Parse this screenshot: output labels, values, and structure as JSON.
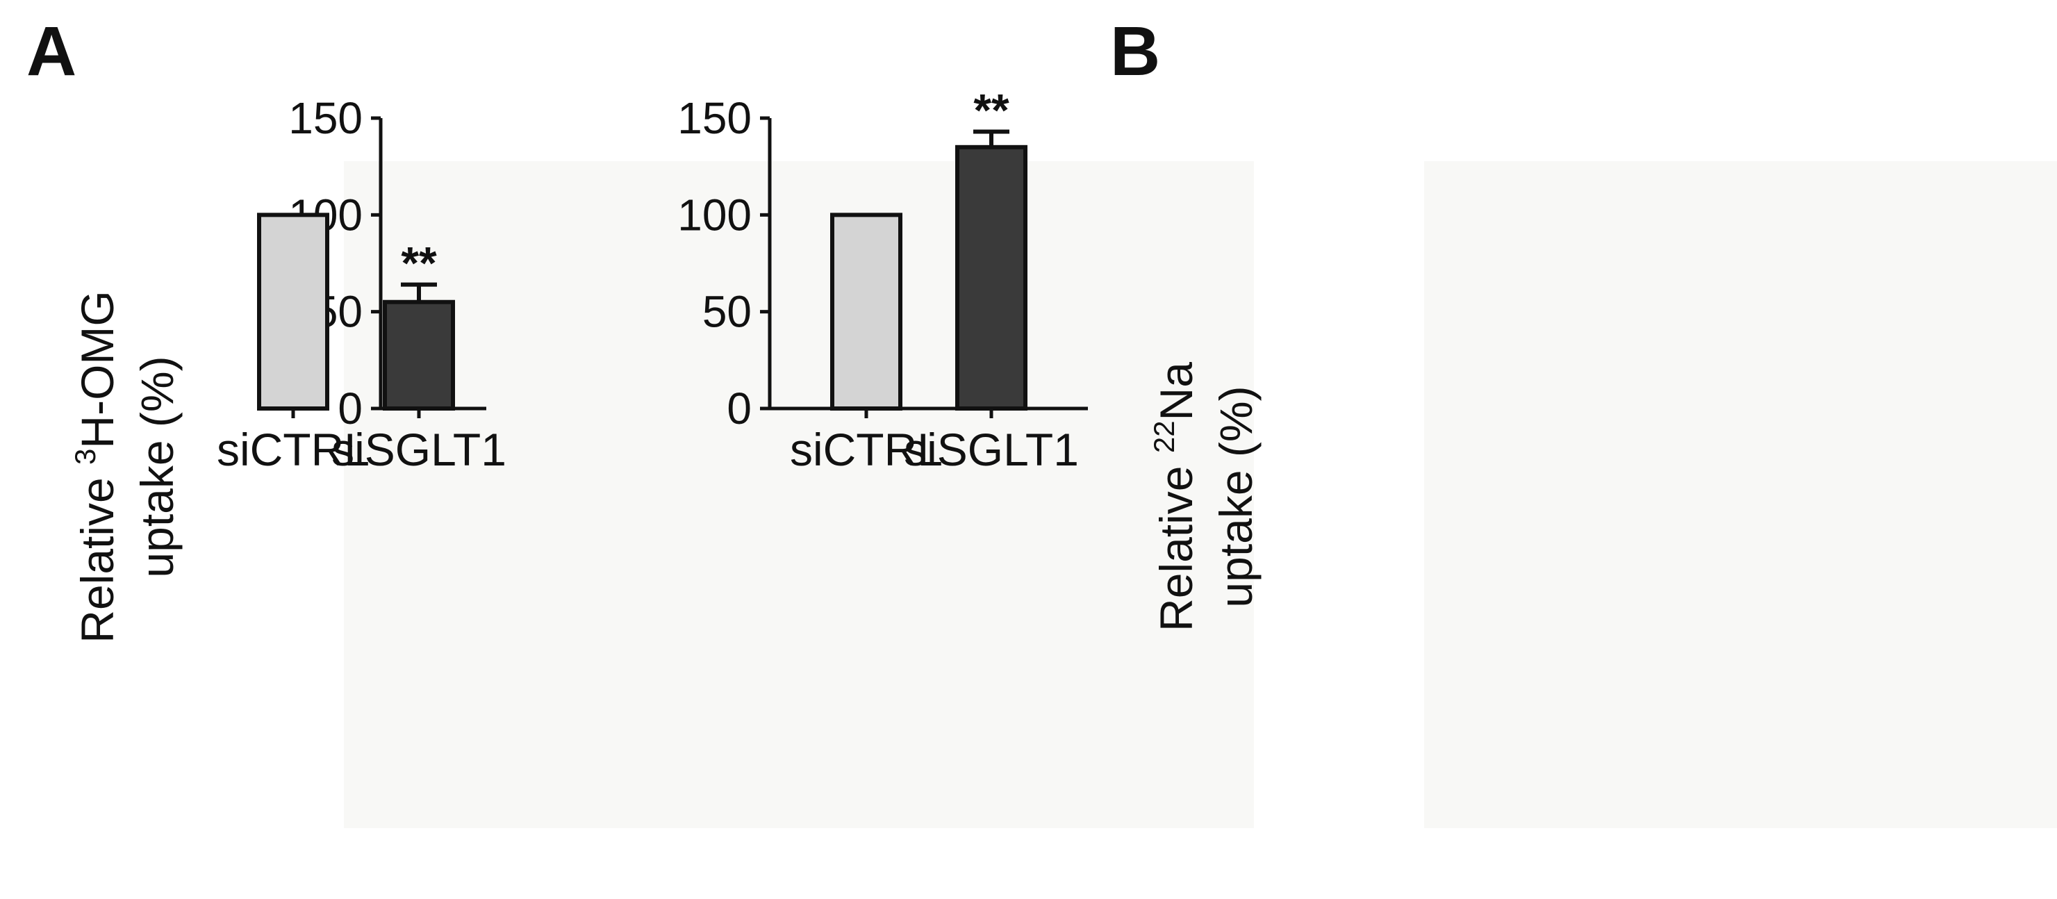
{
  "chart_data": [
    {
      "panel": "A",
      "type": "bar",
      "categories": [
        "siCTRL",
        "siSGLT1"
      ],
      "values": [
        100,
        55
      ],
      "errors": [
        0,
        9
      ],
      "colors": [
        "#d4d4d4",
        "#3a3a3a"
      ],
      "significance": [
        "",
        "**"
      ],
      "ylabel_lines": [
        {
          "prefix": "Relative ",
          "sup": "3",
          "suffix": "H-OMG"
        },
        {
          "prefix": "uptake (%)",
          "sup": "",
          "suffix": ""
        }
      ],
      "ylim": [
        0,
        150
      ],
      "yticks": [
        0,
        50,
        100,
        150
      ],
      "ytick_labels": [
        "0",
        "50",
        "100",
        "150"
      ]
    },
    {
      "panel": "B",
      "type": "bar",
      "categories": [
        "siCTRL",
        "siSGLT1"
      ],
      "values": [
        100,
        135
      ],
      "errors": [
        0,
        8
      ],
      "colors": [
        "#d4d4d4",
        "#3a3a3a"
      ],
      "significance": [
        "",
        "**"
      ],
      "ylabel_lines": [
        {
          "prefix": "Relative ",
          "sup": "22",
          "suffix": "Na"
        },
        {
          "prefix": "uptake (%)",
          "sup": "",
          "suffix": ""
        }
      ],
      "ylim": [
        0,
        150
      ],
      "yticks": [
        0,
        50,
        100,
        150
      ],
      "ytick_labels": [
        "0",
        "50",
        "100",
        "150"
      ]
    }
  ]
}
